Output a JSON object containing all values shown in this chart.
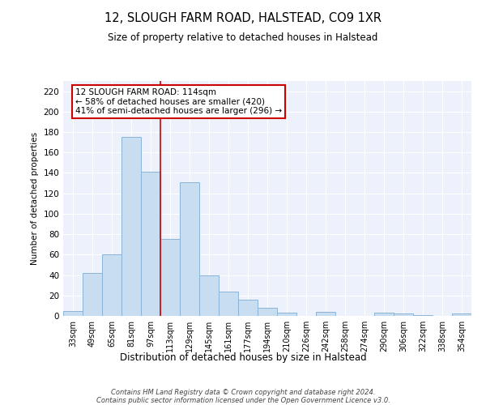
{
  "title": "12, SLOUGH FARM ROAD, HALSTEAD, CO9 1XR",
  "subtitle": "Size of property relative to detached houses in Halstead",
  "xlabel": "Distribution of detached houses by size in Halstead",
  "ylabel": "Number of detached properties",
  "categories": [
    "33sqm",
    "49sqm",
    "65sqm",
    "81sqm",
    "97sqm",
    "113sqm",
    "129sqm",
    "145sqm",
    "161sqm",
    "177sqm",
    "194sqm",
    "210sqm",
    "226sqm",
    "242sqm",
    "258sqm",
    "274sqm",
    "290sqm",
    "306sqm",
    "322sqm",
    "338sqm",
    "354sqm"
  ],
  "values": [
    5,
    42,
    60,
    175,
    141,
    75,
    131,
    40,
    24,
    16,
    8,
    3,
    0,
    4,
    0,
    0,
    3,
    2,
    1,
    0,
    2
  ],
  "bar_color": "#c8ddf0",
  "bar_edge_color": "#8ab4d8",
  "vline_x_index": 5,
  "vline_color": "#cc0000",
  "annotation_text": "12 SLOUGH FARM ROAD: 114sqm\n← 58% of detached houses are smaller (420)\n41% of semi-detached houses are larger (296) →",
  "annotation_box_color": "#ffffff",
  "annotation_box_edge_color": "#cc0000",
  "ylim": [
    0,
    230
  ],
  "yticks": [
    0,
    20,
    40,
    60,
    80,
    100,
    120,
    140,
    160,
    180,
    200,
    220
  ],
  "background_color": "#edf1fb",
  "grid_color": "#ffffff",
  "footer": "Contains HM Land Registry data © Crown copyright and database right 2024.\nContains public sector information licensed under the Open Government Licence v3.0."
}
